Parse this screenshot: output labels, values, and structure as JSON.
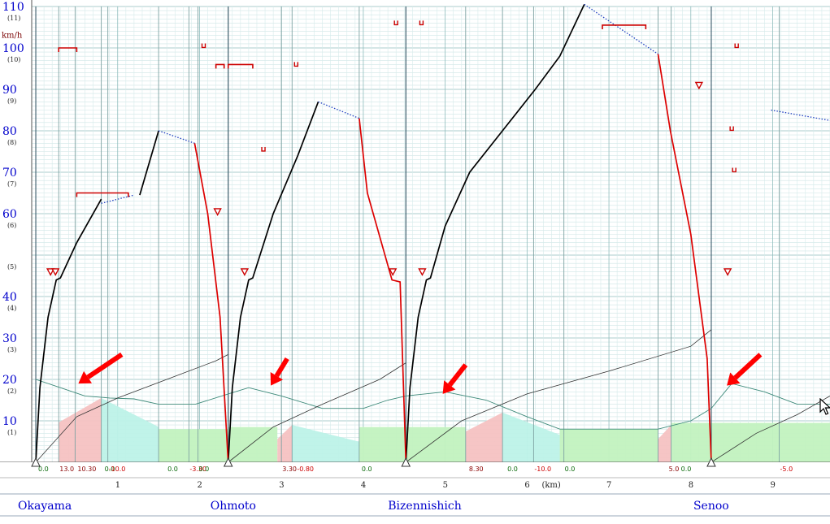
{
  "chart_data": {
    "type": "line",
    "title": "",
    "xlabel": "(km)",
    "ylabel": "km/h",
    "xlim": [
      -0.05,
      9.7
    ],
    "ylim": [
      0,
      110
    ],
    "y_ticks": [
      {
        "v": 10,
        "label": "10",
        "sub": "(1)"
      },
      {
        "v": 20,
        "label": "20",
        "sub": "(2)"
      },
      {
        "v": 30,
        "label": "30",
        "sub": "(3)"
      },
      {
        "v": 40,
        "label": "40",
        "sub": "(4)"
      },
      {
        "v": 50,
        "label": "",
        "sub": "(5)"
      },
      {
        "v": 60,
        "label": "60",
        "sub": "(6)"
      },
      {
        "v": 70,
        "label": "70",
        "sub": "(7)"
      },
      {
        "v": 80,
        "label": "80",
        "sub": "(8)"
      },
      {
        "v": 90,
        "label": "90",
        "sub": "(9)"
      },
      {
        "v": 100,
        "label": "100",
        "sub": "(10)"
      },
      {
        "v": 110,
        "label": "110",
        "sub": "(11)"
      }
    ],
    "x_ticks": [
      {
        "v": 1,
        "label": "1"
      },
      {
        "v": 2,
        "label": "2"
      },
      {
        "v": 3,
        "label": "3"
      },
      {
        "v": 4,
        "label": "4"
      },
      {
        "v": 5,
        "label": "5"
      },
      {
        "v": 6,
        "label": "6"
      },
      {
        "v": 7,
        "label": "7"
      },
      {
        "v": 8,
        "label": "8"
      },
      {
        "v": 9,
        "label": "9"
      }
    ],
    "stations": [
      {
        "name": "Okayama",
        "km": 0.0
      },
      {
        "name": "Ohmoto",
        "km": 2.35
      },
      {
        "name": "Bizennishich",
        "km": 4.52
      },
      {
        "name": "Senoo",
        "km": 8.25
      }
    ],
    "speed_series": {
      "accel": [
        [
          [
            0.0,
            0
          ],
          [
            0.05,
            18
          ],
          [
            0.15,
            35
          ],
          [
            0.25,
            44
          ],
          [
            0.3,
            44.5
          ],
          [
            0.5,
            53
          ],
          [
            0.8,
            63.5
          ]
        ],
        [
          [
            1.27,
            64.5
          ],
          [
            1.5,
            80
          ]
        ],
        [
          [
            2.35,
            0
          ],
          [
            2.4,
            18
          ],
          [
            2.5,
            35
          ],
          [
            2.6,
            44
          ],
          [
            2.65,
            44.5
          ],
          [
            2.9,
            60
          ],
          [
            3.2,
            74
          ],
          [
            3.45,
            87
          ]
        ],
        [
          [
            4.52,
            0
          ],
          [
            4.57,
            18
          ],
          [
            4.67,
            35
          ],
          [
            4.77,
            44
          ],
          [
            4.82,
            44.5
          ],
          [
            5.0,
            57
          ],
          [
            5.3,
            70
          ],
          [
            5.7,
            80
          ],
          [
            6.1,
            90
          ],
          [
            6.4,
            98
          ],
          [
            6.7,
            110.5
          ]
        ]
      ],
      "coast": [
        [
          [
            0.8,
            62.5
          ],
          [
            1.2,
            64.5
          ]
        ],
        [
          [
            1.5,
            80
          ],
          [
            1.94,
            77
          ]
        ],
        [
          [
            3.45,
            87
          ],
          [
            3.95,
            83
          ]
        ],
        [
          [
            6.7,
            110.5
          ],
          [
            7.6,
            98.5
          ]
        ],
        [
          [
            8.98,
            85
          ],
          [
            9.7,
            82.5
          ]
        ]
      ],
      "brake": [
        [
          [
            1.94,
            77
          ],
          [
            2.1,
            60
          ],
          [
            2.25,
            35
          ],
          [
            2.35,
            0
          ]
        ],
        [
          [
            3.95,
            83
          ],
          [
            4.05,
            65
          ],
          [
            4.35,
            44
          ],
          [
            4.45,
            43.5
          ],
          [
            4.52,
            0
          ]
        ],
        [
          [
            7.6,
            98.5
          ],
          [
            7.75,
            80
          ],
          [
            8.0,
            55
          ],
          [
            8.2,
            25
          ],
          [
            8.25,
            0
          ]
        ]
      ]
    },
    "time_series": [
      [
        [
          0.0,
          0
        ],
        [
          0.5,
          11
        ],
        [
          1.0,
          15.5
        ],
        [
          1.6,
          20
        ],
        [
          2.2,
          24.5
        ],
        [
          2.35,
          26
        ]
      ],
      [
        [
          2.35,
          0
        ],
        [
          2.9,
          8.5
        ],
        [
          3.5,
          14
        ],
        [
          4.2,
          20
        ],
        [
          4.52,
          24
        ]
      ],
      [
        [
          4.52,
          0
        ],
        [
          5.2,
          10
        ],
        [
          6.0,
          16.5
        ],
        [
          7.0,
          22
        ],
        [
          8.0,
          28
        ],
        [
          8.25,
          32
        ]
      ],
      [
        [
          8.25,
          0
        ],
        [
          8.8,
          7
        ],
        [
          9.3,
          11.5
        ],
        [
          9.7,
          16
        ]
      ]
    ],
    "gradient_profile": [
      [
        0.0,
        20
      ],
      [
        0.3,
        18
      ],
      [
        0.6,
        16
      ],
      [
        0.9,
        15.5
      ],
      [
        1.2,
        15.3
      ],
      [
        1.5,
        14
      ],
      [
        1.95,
        14
      ],
      [
        2.35,
        16.5
      ],
      [
        2.6,
        18
      ],
      [
        3.0,
        16
      ],
      [
        3.5,
        13
      ],
      [
        4.0,
        13
      ],
      [
        4.3,
        15
      ],
      [
        4.52,
        16
      ],
      [
        5.0,
        17
      ],
      [
        5.5,
        15
      ],
      [
        6.0,
        11
      ],
      [
        6.4,
        8
      ],
      [
        7.6,
        8
      ],
      [
        8.0,
        10
      ],
      [
        8.25,
        13
      ],
      [
        8.5,
        19
      ],
      [
        8.9,
        17
      ],
      [
        9.3,
        14
      ],
      [
        9.7,
        14
      ]
    ],
    "gradient_zones": [
      {
        "from": 0.28,
        "to": 0.8,
        "kind": "uphill",
        "height": 15.5
      },
      {
        "from": 0.8,
        "to": 1.5,
        "kind": "downhill",
        "height": 15.5
      },
      {
        "from": 1.5,
        "to": 2.35,
        "kind": "level",
        "height": 8
      },
      {
        "from": 2.35,
        "to": 2.95,
        "kind": "level",
        "height": 8.5
      },
      {
        "from": 2.95,
        "to": 3.13,
        "kind": "uphill",
        "height": 9
      },
      {
        "from": 3.13,
        "to": 3.95,
        "kind": "downhill",
        "height": 9
      },
      {
        "from": 3.95,
        "to": 4.52,
        "kind": "level",
        "height": 8.5
      },
      {
        "from": 4.52,
        "to": 5.25,
        "kind": "level",
        "height": 8.5
      },
      {
        "from": 5.25,
        "to": 5.7,
        "kind": "uphill",
        "height": 12
      },
      {
        "from": 5.7,
        "to": 6.4,
        "kind": "downhill",
        "height": 12
      },
      {
        "from": 6.4,
        "to": 7.6,
        "kind": "level",
        "height": 8
      },
      {
        "from": 7.6,
        "to": 7.76,
        "kind": "uphill",
        "height": 9
      },
      {
        "from": 7.76,
        "to": 9.7,
        "kind": "level",
        "height": 9.5
      }
    ],
    "gradient_labels": [
      {
        "km": 0.02,
        "text": "0.0",
        "color": "#0a6a0a"
      },
      {
        "km": 0.28,
        "text": "13.0",
        "color": "#8a0000"
      },
      {
        "km": 0.5,
        "text": "10.30",
        "color": "#8a0000"
      },
      {
        "km": 0.83,
        "text": "0.0",
        "color": "#0a6a0a"
      },
      {
        "km": 0.88,
        "text": "-10.0",
        "color": "#cc0000"
      },
      {
        "km": 1.6,
        "text": "0.0",
        "color": "#0a6a0a"
      },
      {
        "km": 1.87,
        "text": "-3.30",
        "color": "#cc0000"
      },
      {
        "km": 1.98,
        "text": "0.0",
        "color": "#0a6a0a"
      },
      {
        "km": 3.0,
        "text": "3.30",
        "color": "#8a0000"
      },
      {
        "km": 3.18,
        "text": "-0.80",
        "color": "#cc0000"
      },
      {
        "km": 3.97,
        "text": "0.0",
        "color": "#0a6a0a"
      },
      {
        "km": 5.28,
        "text": "8.30",
        "color": "#8a0000"
      },
      {
        "km": 5.75,
        "text": "0.0",
        "color": "#0a6a0a"
      },
      {
        "km": 6.08,
        "text": "-10.0",
        "color": "#cc0000"
      },
      {
        "km": 6.45,
        "text": "0.0",
        "color": "#0a6a0a"
      },
      {
        "km": 7.72,
        "text": "5.0",
        "color": "#8a0000"
      },
      {
        "km": 7.87,
        "text": "0.0",
        "color": "#0a6a0a"
      },
      {
        "km": 9.08,
        "text": "-5.0",
        "color": "#cc0000"
      }
    ],
    "speed_limits": [
      {
        "type": "bracket",
        "from": 0.28,
        "to": 0.5,
        "v": 100
      },
      {
        "type": "bracket",
        "from": 0.5,
        "to": 1.13,
        "v": 65
      },
      {
        "type": "bracket",
        "from": 2.2,
        "to": 2.3,
        "v": 96
      },
      {
        "type": "bracket",
        "from": 2.35,
        "to": 2.65,
        "v": 96
      },
      {
        "type": "bracket",
        "from": 6.92,
        "to": 7.45,
        "v": 105.5
      },
      {
        "type": "u",
        "km": 2.05,
        "v": 100.5
      },
      {
        "type": "u",
        "km": 2.78,
        "v": 75.5
      },
      {
        "type": "u",
        "km": 3.18,
        "v": 96
      },
      {
        "type": "u",
        "km": 4.4,
        "v": 106
      },
      {
        "type": "u",
        "km": 4.71,
        "v": 106
      },
      {
        "type": "u",
        "km": 8.5,
        "v": 80.5
      },
      {
        "type": "u",
        "km": 8.53,
        "v": 70.5
      },
      {
        "type": "u",
        "km": 8.56,
        "v": 100.5
      },
      {
        "type": "tri",
        "km": 0.18,
        "v": 46
      },
      {
        "type": "tri",
        "km": 0.24,
        "v": 46
      },
      {
        "type": "tri",
        "km": 2.22,
        "v": 60.5
      },
      {
        "type": "tri",
        "km": 2.55,
        "v": 46
      },
      {
        "type": "tri",
        "km": 4.36,
        "v": 46
      },
      {
        "type": "tri",
        "km": 4.72,
        "v": 46
      },
      {
        "type": "tri",
        "km": 8.1,
        "v": 91
      },
      {
        "type": "tri",
        "km": 8.45,
        "v": 46
      }
    ],
    "station_marks": [
      0.0,
      2.35,
      4.52,
      8.25
    ],
    "section_lines": [
      0.28,
      0.48,
      0.8,
      0.88,
      1.5,
      1.87,
      1.98,
      2.35,
      3.0,
      3.13,
      3.95,
      4.52,
      5.25,
      5.7,
      6.08,
      6.45,
      7.6,
      7.76,
      8.25,
      9.08
    ],
    "arrows": [
      {
        "from": [
          1.05,
          26
        ],
        "to": [
          0.52,
          19
        ]
      },
      {
        "from": [
          3.07,
          25
        ],
        "to": [
          2.87,
          18.5
        ]
      },
      {
        "from": [
          5.25,
          23.5
        ],
        "to": [
          4.97,
          16.5
        ]
      },
      {
        "from": [
          8.85,
          26
        ],
        "to": [
          8.44,
          18.5
        ]
      }
    ],
    "legend": "none",
    "grid": true
  }
}
